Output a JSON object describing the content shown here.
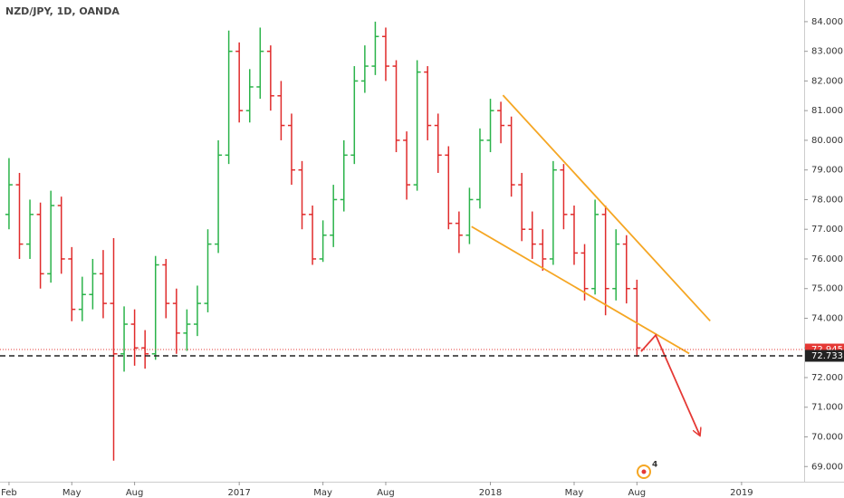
{
  "chart_data": {
    "type": "ohlc",
    "title": "NZD/JPY, 1D, OANDA",
    "badge": "4",
    "up_color": "#2bb34a",
    "down_color": "#e02b2b",
    "x": [
      0,
      0.5,
      1,
      1.5,
      2,
      2.5,
      3,
      3.5,
      4,
      4.5,
      5,
      5.5,
      6,
      6.5,
      7,
      7.5,
      8,
      8.5,
      9,
      9.5,
      10,
      10.5,
      11,
      11.5,
      12,
      12.5,
      13,
      13.5,
      14,
      14.5,
      15,
      15.5,
      16,
      16.5,
      17,
      17.5,
      18,
      18.5,
      19,
      19.5,
      20,
      20.5,
      21,
      21.5,
      22,
      22.5,
      23,
      23.5,
      24,
      24.5,
      25,
      25.5,
      26,
      26.5,
      27,
      27.5,
      28,
      28.5,
      29,
      29.5,
      30
    ],
    "open": [
      77.5,
      78.5,
      76.5,
      77.5,
      75.5,
      77.8,
      76,
      74.3,
      74.8,
      75.5,
      74.5,
      72.8,
      73.8,
      73,
      72.8,
      75.8,
      74.5,
      73.5,
      73.8,
      74.5,
      76.5,
      79.5,
      83,
      81,
      81.8,
      83,
      81.5,
      80.5,
      79,
      77.5,
      76,
      76.8,
      78,
      79.5,
      82,
      82.5,
      83.5,
      82.5,
      80,
      78.5,
      82.3,
      80.5,
      79.5,
      77.2,
      76.8,
      78,
      80,
      81,
      80.5,
      78.5,
      77,
      76.5,
      76,
      79,
      77.5,
      76.2,
      75,
      77.5,
      75,
      76.5,
      75
    ],
    "high": [
      79.4,
      78.9,
      78,
      77.9,
      78.3,
      78.1,
      76.4,
      75.4,
      76,
      76.3,
      76.7,
      74.4,
      74.3,
      73.6,
      76.1,
      76,
      75,
      74.3,
      75.1,
      77,
      80,
      83.7,
      83.3,
      82.4,
      83.8,
      83.2,
      82,
      80.9,
      79.3,
      77.8,
      77.3,
      78.5,
      80,
      82.5,
      83.2,
      84,
      83.8,
      82.7,
      80.3,
      82.7,
      82.5,
      80.9,
      79.8,
      77.6,
      78.4,
      80.4,
      81.4,
      81.3,
      80.8,
      78.9,
      77.6,
      77,
      79.3,
      79.2,
      77.8,
      76.5,
      78,
      77.8,
      77,
      76.8,
      75.3
    ],
    "low": [
      77,
      76,
      76,
      75,
      75.2,
      75.5,
      73.9,
      73.9,
      74.3,
      74,
      69.2,
      72.2,
      72.4,
      72.3,
      72.6,
      74,
      72.8,
      72.9,
      73.4,
      74.2,
      76.2,
      79.2,
      80.6,
      80.6,
      81.4,
      81,
      80,
      78.5,
      77,
      75.8,
      75.9,
      76.4,
      77.6,
      79.2,
      81.6,
      82.2,
      82,
      79.6,
      78,
      78.3,
      80,
      78.9,
      77,
      76.2,
      76.5,
      77.7,
      79.6,
      79.9,
      78.1,
      76.6,
      76,
      75.6,
      75.8,
      77,
      75.8,
      74.6,
      74.8,
      74.1,
      74.6,
      74.5,
      72.7
    ],
    "close": [
      78.5,
      76.5,
      77.5,
      75.5,
      77.8,
      76,
      74.3,
      74.8,
      75.5,
      74.5,
      72.8,
      73.8,
      73,
      72.8,
      75.8,
      74.5,
      73.5,
      73.8,
      74.5,
      76.5,
      79.5,
      83,
      81,
      81.8,
      83,
      81.5,
      80.5,
      79,
      77.5,
      76,
      76.8,
      78,
      79.5,
      82,
      82.5,
      83.5,
      82.5,
      80,
      78.5,
      82.3,
      80.5,
      79.5,
      77.2,
      76.8,
      78,
      80,
      81,
      80.5,
      78.5,
      77,
      76.5,
      76,
      79,
      77.5,
      76.2,
      75,
      77.5,
      75,
      76.5,
      75,
      73
    ],
    "xlim": [
      -0.43,
      37.99
    ],
    "ylim": [
      68.55,
      84.73
    ],
    "xticks": [
      {
        "value": 0,
        "label": "Feb"
      },
      {
        "value": 3,
        "label": "May"
      },
      {
        "value": 6,
        "label": "Aug"
      },
      {
        "value": 11,
        "label": "2017"
      },
      {
        "value": 15,
        "label": "May"
      },
      {
        "value": 18,
        "label": "Aug"
      },
      {
        "value": 23,
        "label": "2018"
      },
      {
        "value": 27,
        "label": "May"
      },
      {
        "value": 30,
        "label": "Aug"
      },
      {
        "value": 35,
        "label": "2019"
      }
    ],
    "yticks": [
      {
        "value": 69,
        "label": "69.000"
      },
      {
        "value": 70,
        "label": "70.000"
      },
      {
        "value": 71,
        "label": "71.000"
      },
      {
        "value": 72,
        "label": "72.000"
      },
      {
        "value": 73,
        "label": "73.000"
      },
      {
        "value": 74,
        "label": "74.000"
      },
      {
        "value": 75,
        "label": "75.000"
      },
      {
        "value": 76,
        "label": "76.000"
      },
      {
        "value": 77,
        "label": "77.000"
      },
      {
        "value": 78,
        "label": "78.000"
      },
      {
        "value": 79,
        "label": "79.000"
      },
      {
        "value": 80,
        "label": "80.000"
      },
      {
        "value": 81,
        "label": "81.000"
      },
      {
        "value": 82,
        "label": "82.000"
      },
      {
        "value": 83,
        "label": "83.000"
      },
      {
        "value": 84,
        "label": "84.000"
      }
    ],
    "price_lines": [
      {
        "value": 72.945,
        "color": "#e53935",
        "style": "dotted"
      },
      {
        "value": 72.733,
        "color": "#222222",
        "style": "dashed"
      }
    ],
    "drawings": [
      {
        "color": "#f5a623",
        "x": [
          23.6,
          33.5
        ],
        "y": [
          81.52,
          73.91
        ]
      },
      {
        "color": "#f5a623",
        "x": [
          22.1,
          32.5
        ],
        "y": [
          77.09,
          72.81
        ]
      },
      {
        "color": "#e53935",
        "x": [
          30.2,
          30.9,
          33.0
        ],
        "y": [
          72.88,
          73.43,
          70.06
        ],
        "arrow": true
      }
    ]
  }
}
